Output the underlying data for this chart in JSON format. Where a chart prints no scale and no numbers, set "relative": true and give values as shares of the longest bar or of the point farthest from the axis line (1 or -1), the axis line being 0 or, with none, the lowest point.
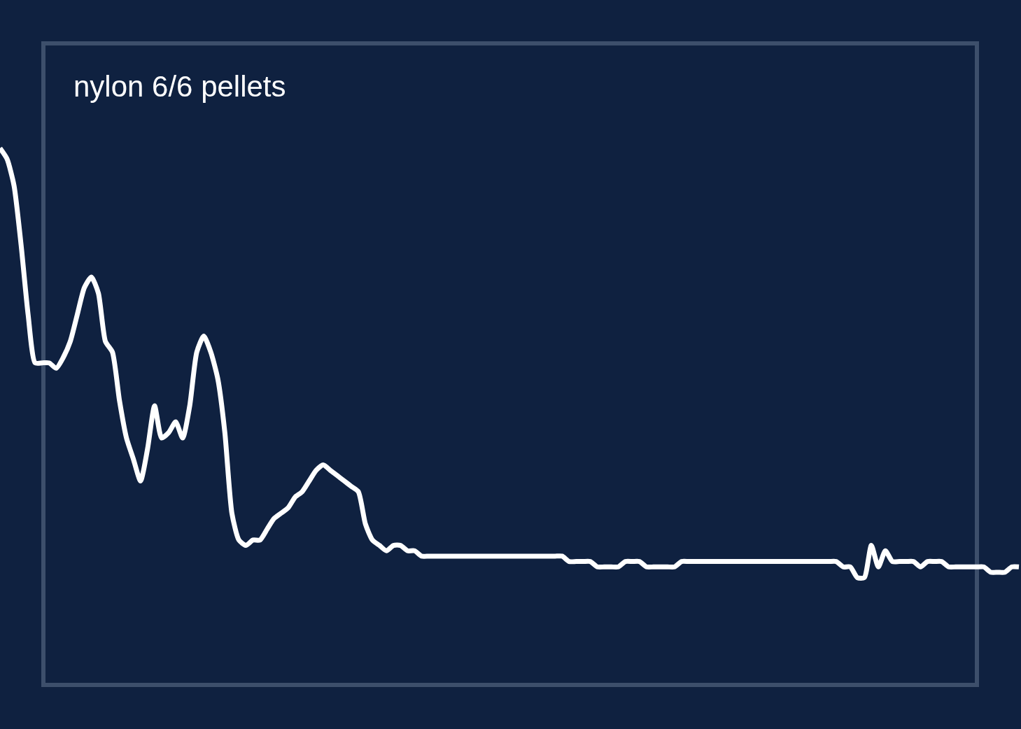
{
  "chart_data": {
    "type": "line",
    "title": "nylon 6/6 pellets",
    "relative": true,
    "color": "#ffffff",
    "legend": false,
    "marker": "none",
    "line_style": "solid",
    "categories": [
      null,
      null,
      null,
      null,
      null,
      null,
      null,
      null,
      null,
      null,
      null,
      null,
      null,
      null,
      null,
      null,
      null,
      null,
      null,
      null,
      null,
      null,
      null,
      null,
      null,
      null,
      null,
      null,
      null,
      null,
      null,
      null,
      null,
      null,
      null,
      null,
      null,
      null,
      null,
      null,
      null,
      null,
      null,
      null,
      null,
      null,
      null,
      null,
      null,
      null,
      null,
      null,
      null,
      null,
      null,
      null,
      null,
      null,
      null,
      null,
      null,
      null,
      null,
      null,
      null,
      null,
      null,
      null,
      null,
      null,
      null,
      null,
      null,
      null,
      null,
      null,
      null,
      null,
      null,
      null,
      null,
      null,
      null,
      null,
      null,
      null,
      null,
      null,
      null,
      null,
      null,
      null,
      null,
      null,
      null,
      null,
      null,
      null,
      null,
      null,
      null,
      null,
      null,
      null,
      null,
      null,
      null,
      null,
      null,
      null,
      null,
      null,
      null,
      null,
      null,
      null,
      null,
      null,
      null,
      null,
      null,
      null,
      null,
      null,
      null,
      null,
      null,
      null,
      null,
      null,
      null,
      null,
      null,
      null,
      null,
      null,
      null,
      null,
      null,
      null,
      null,
      null,
      null,
      null,
      null,
      null
    ],
    "values": [
      1.0,
      0.98,
      0.93,
      0.82,
      0.69,
      0.6,
      0.6,
      0.6,
      0.59,
      0.61,
      0.64,
      0.69,
      0.74,
      0.76,
      0.73,
      0.64,
      0.62,
      0.53,
      0.46,
      0.42,
      0.38,
      0.44,
      0.52,
      0.46,
      0.47,
      0.49,
      0.46,
      0.52,
      0.62,
      0.65,
      0.62,
      0.57,
      0.47,
      0.32,
      0.27,
      0.26,
      0.27,
      0.27,
      0.29,
      0.31,
      0.32,
      0.33,
      0.35,
      0.36,
      0.38,
      0.4,
      0.41,
      0.4,
      0.39,
      0.38,
      0.37,
      0.36,
      0.3,
      0.27,
      0.26,
      0.25,
      0.26,
      0.26,
      0.25,
      0.25,
      0.24,
      0.24,
      0.24,
      0.24,
      0.24,
      0.24,
      0.24,
      0.24,
      0.24,
      0.24,
      0.24,
      0.24,
      0.24,
      0.24,
      0.24,
      0.24,
      0.24,
      0.24,
      0.24,
      0.24,
      0.24,
      0.23,
      0.23,
      0.23,
      0.23,
      0.22,
      0.22,
      0.22,
      0.22,
      0.23,
      0.23,
      0.23,
      0.22,
      0.22,
      0.22,
      0.22,
      0.22,
      0.23,
      0.23,
      0.23,
      0.23,
      0.23,
      0.23,
      0.23,
      0.23,
      0.23,
      0.23,
      0.23,
      0.23,
      0.23,
      0.23,
      0.23,
      0.23,
      0.23,
      0.23,
      0.23,
      0.23,
      0.23,
      0.23,
      0.23,
      0.22,
      0.22,
      0.2,
      0.2,
      0.26,
      0.22,
      0.25,
      0.23,
      0.23,
      0.23,
      0.23,
      0.22,
      0.23,
      0.23,
      0.23,
      0.22,
      0.22,
      0.22,
      0.22,
      0.22,
      0.22,
      0.21,
      0.21,
      0.21,
      0.22,
      0.22
    ]
  }
}
